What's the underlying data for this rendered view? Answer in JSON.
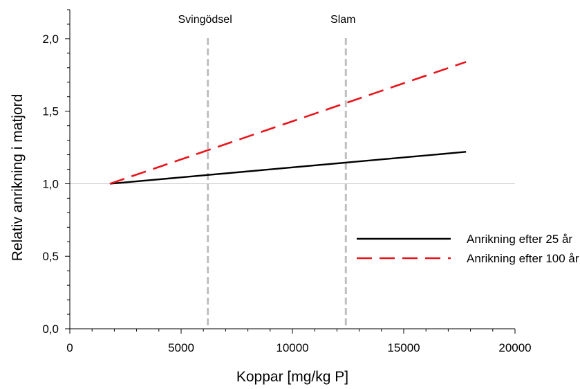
{
  "chart_data": {
    "type": "line",
    "title": "",
    "xlabel": "Koppar [mg/kg P]",
    "ylabel": "Relativ anrikning i matjord",
    "xlim": [
      0,
      20000
    ],
    "ylim": [
      0,
      2.2
    ],
    "x_ticks": [
      0,
      5000,
      10000,
      15000,
      20000
    ],
    "x_tick_labels": [
      "0",
      "5000",
      "10000",
      "15000",
      "20000"
    ],
    "y_ticks": [
      0,
      0.5,
      1.0,
      1.5,
      2.0
    ],
    "y_tick_labels": [
      "0,0",
      "0,5",
      "1,0",
      "1,5",
      "2,0"
    ],
    "reference_line_y": 1.0,
    "series": [
      {
        "name": "Anrikning efter 25 år",
        "color": "#000000",
        "dash": "solid",
        "x": [
          1800,
          17800
        ],
        "y": [
          1.0,
          1.22
        ]
      },
      {
        "name": "Anrikning efter 100 år",
        "color": "#e8141c",
        "dash": "dashed",
        "x": [
          1800,
          17800
        ],
        "y": [
          1.0,
          1.84
        ]
      }
    ],
    "vlines": [
      {
        "label": "Svingödsel",
        "x": 6200,
        "color": "#bfbfbf"
      },
      {
        "label": "Slam",
        "x": 12400,
        "color": "#bfbfbf"
      }
    ],
    "legend_position": "right"
  }
}
